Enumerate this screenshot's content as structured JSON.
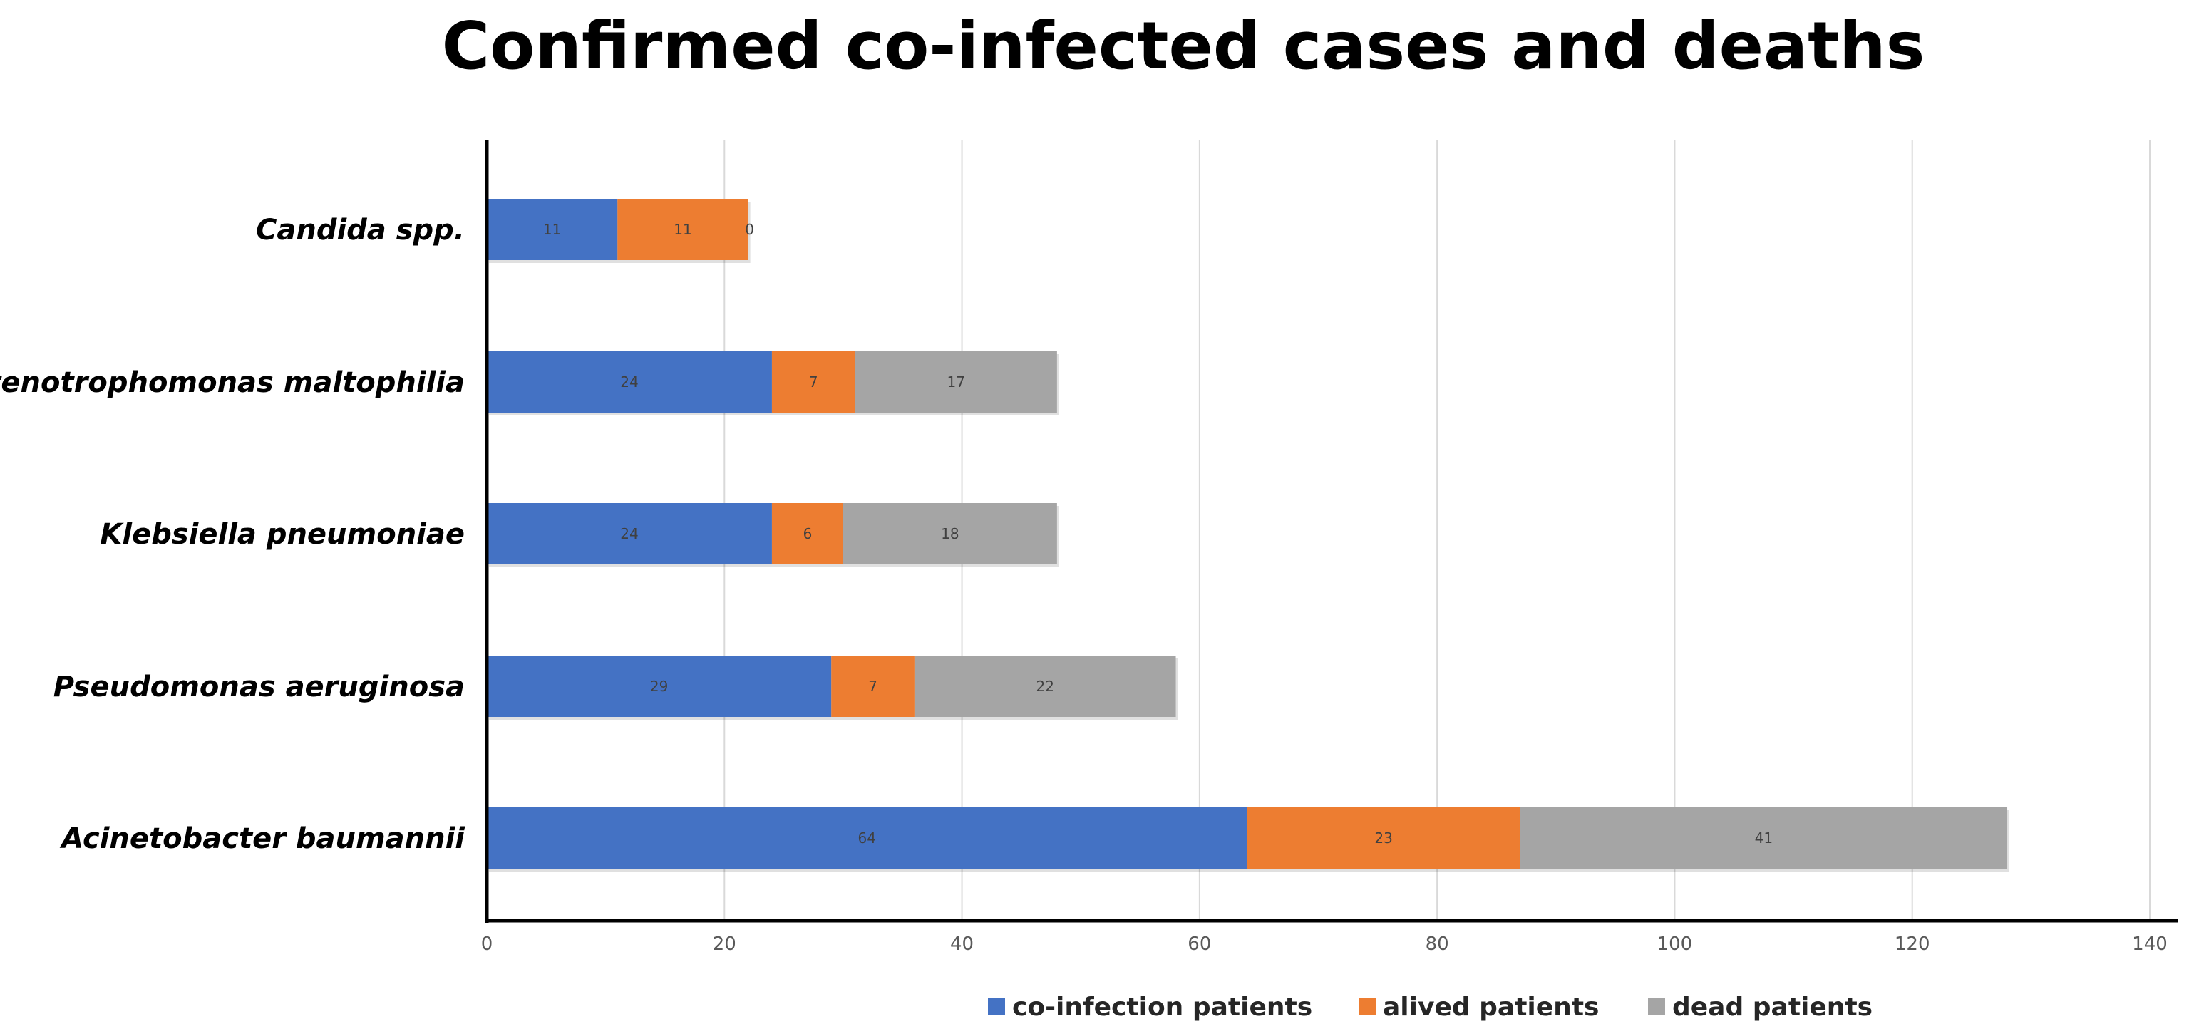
{
  "chart_data": {
    "type": "bar",
    "orientation": "horizontal",
    "stacked": true,
    "title": "Confirmed co-infected cases and deaths",
    "xlabel": "",
    "ylabel": "",
    "xlim": [
      0,
      140
    ],
    "xticks": [
      0,
      20,
      40,
      60,
      80,
      100,
      120,
      140
    ],
    "categories": [
      "Candida spp.",
      "Stenotrophomonas maltophilia",
      "Klebsiella pneumoniae",
      "Pseudomonas aeruginosa",
      "Acinetobacter baumannii"
    ],
    "series": [
      {
        "name": "co-infection patients",
        "color": "#4472C4",
        "values": [
          11,
          24,
          24,
          29,
          64
        ]
      },
      {
        "name": "alived patients",
        "color": "#ED7D31",
        "values": [
          11,
          7,
          6,
          7,
          23
        ]
      },
      {
        "name": "dead patients",
        "color": "#A5A5A5",
        "values": [
          0,
          17,
          18,
          22,
          41
        ]
      }
    ],
    "grid": true,
    "legend_position": "bottom"
  }
}
